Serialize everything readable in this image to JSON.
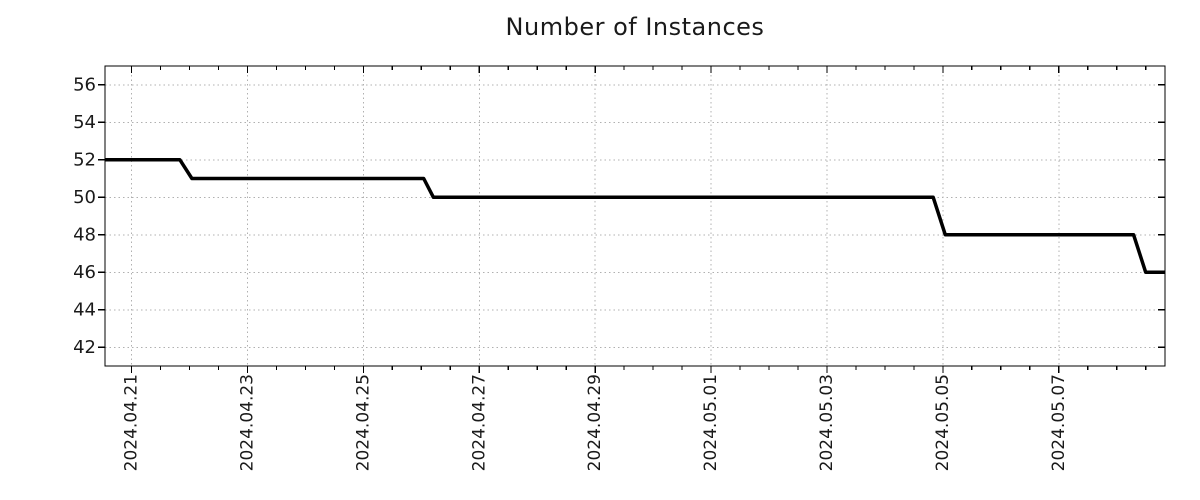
{
  "chart_data": {
    "type": "line",
    "subtype": "step-time-series",
    "title": "Number of Instances",
    "grid": {
      "style": "dotted",
      "color": "#b0b0b0"
    },
    "colors": {
      "line": "#000000",
      "axis": "#000000",
      "text": "#1a1a1a"
    },
    "legend": "none",
    "x_axis": {
      "min": "2024-04-20T13:00",
      "max": "2024-05-08T20:00",
      "tick_labels": [
        "2024.04.21",
        "2024.04.23",
        "2024.04.25",
        "2024.04.27",
        "2024.04.29",
        "2024.05.01",
        "2024.05.03",
        "2024.05.05",
        "2024.05.07"
      ],
      "tick_dates": [
        "2024-04-21",
        "2024-04-23",
        "2024-04-25",
        "2024-04-27",
        "2024-04-29",
        "2024-05-01",
        "2024-05-03",
        "2024-05-05",
        "2024-05-07"
      ],
      "minor_tick_hours": 12
    },
    "y_axis": {
      "min": 41,
      "max": 57,
      "ticks": [
        42,
        44,
        46,
        48,
        50,
        52,
        54,
        56
      ]
    },
    "series": [
      {
        "name": "instances",
        "color": "#000000",
        "points": [
          {
            "t": "2024-04-20T13:00",
            "value": 52
          },
          {
            "t": "2024-04-21T20:00",
            "value": 52
          },
          {
            "t": "2024-04-22T01:00",
            "value": 51
          },
          {
            "t": "2024-04-26T01:00",
            "value": 51
          },
          {
            "t": "2024-04-26T05:00",
            "value": 50
          },
          {
            "t": "2024-05-04T20:00",
            "value": 50
          },
          {
            "t": "2024-05-05T01:00",
            "value": 48
          },
          {
            "t": "2024-05-08T07:00",
            "value": 48
          },
          {
            "t": "2024-05-08T12:00",
            "value": 46
          },
          {
            "t": "2024-05-08T20:00",
            "value": 46
          }
        ]
      }
    ]
  }
}
